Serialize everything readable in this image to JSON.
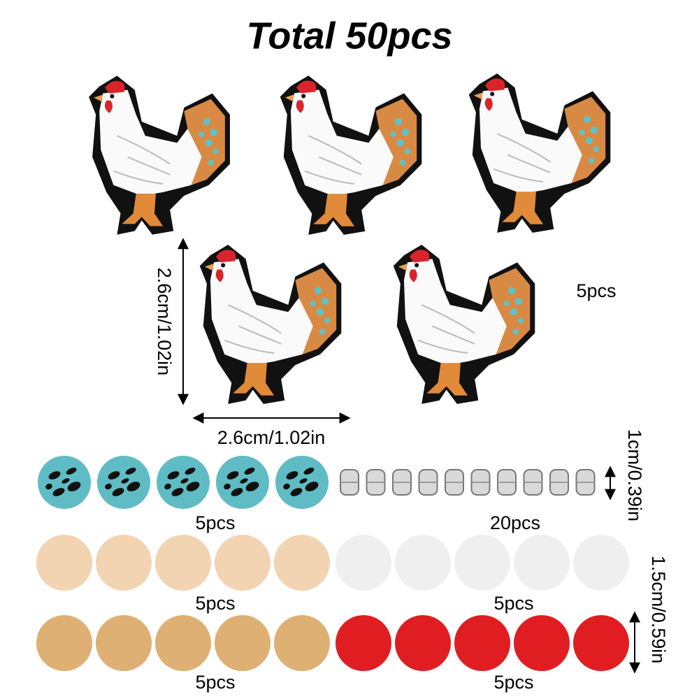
{
  "title": "Total 50pcs",
  "chicken": {
    "count": "5pcs",
    "height": "2.6cm/1.02in",
    "width": "2.6cm/1.02in"
  },
  "beads": [
    {
      "count": "5pcs"
    },
    {
      "count": "20pcs"
    },
    {
      "count": "5pcs"
    },
    {
      "count": "5pcs"
    },
    {
      "count": "5pcs"
    },
    {
      "count": "5pcs"
    }
  ],
  "dimensions": {
    "spacer": "1cm/0.39in",
    "bead": "1.5cm/0.59in"
  }
}
